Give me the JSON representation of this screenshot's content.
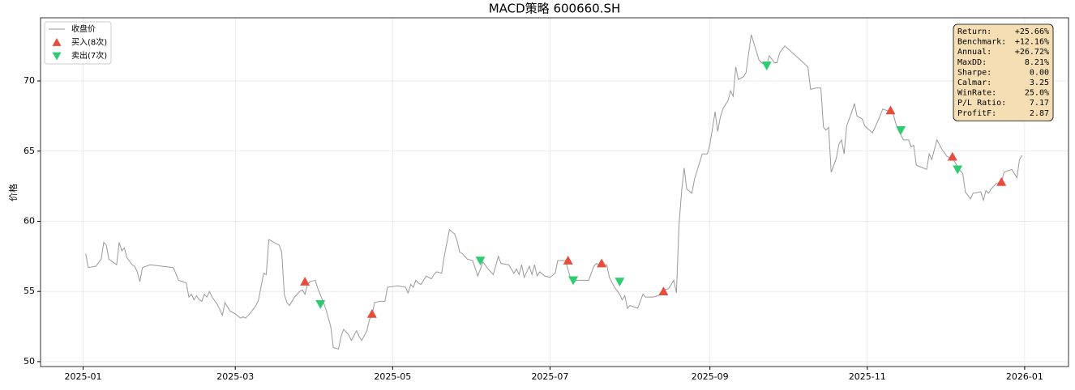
{
  "chart_data": {
    "type": "line",
    "title": "MACD策略  600660.SH",
    "y_label": "价格",
    "xlim": [
      -16.5,
      382
    ],
    "xticks": [
      {
        "value": 0,
        "label": "2025-01"
      },
      {
        "value": 59,
        "label": "2025-03"
      },
      {
        "value": 120,
        "label": "2025-05"
      },
      {
        "value": 181,
        "label": "2025-07"
      },
      {
        "value": 243,
        "label": "2025-09"
      },
      {
        "value": 304,
        "label": "2025-11"
      },
      {
        "value": 365,
        "label": "2026-01"
      }
    ],
    "ylim": [
      49.65,
      74.5
    ],
    "yticks": [
      50,
      55,
      60,
      65,
      70
    ],
    "grid": true,
    "legend": "upper left",
    "series": [
      {
        "name": "收盘价",
        "color": "#999999",
        "marker": "none",
        "x": [
          1,
          2,
          5,
          7,
          8,
          9,
          10,
          13,
          14,
          15,
          16,
          17,
          19,
          20,
          21,
          22,
          23,
          26,
          35,
          37,
          40,
          41,
          42,
          43,
          44,
          45,
          46,
          47,
          48,
          49,
          50,
          52,
          54,
          55,
          57,
          59,
          61,
          62,
          63,
          65,
          67,
          68,
          70,
          71,
          72,
          74,
          76,
          77,
          78,
          79,
          80,
          82,
          84,
          85,
          86,
          87,
          88,
          90,
          91,
          93,
          94,
          96,
          97,
          99,
          100,
          101,
          103,
          104,
          106,
          107,
          108,
          110,
          111,
          112,
          113,
          115,
          117,
          118,
          122,
          125,
          126,
          127,
          128,
          129,
          130,
          131,
          133,
          135,
          136,
          137,
          139,
          140,
          142,
          144,
          145,
          146,
          147,
          149,
          151,
          153,
          155,
          157,
          159,
          161,
          162,
          165,
          167,
          168,
          169,
          170,
          171,
          173,
          174,
          175,
          176,
          177,
          179,
          181,
          183,
          184,
          187,
          189,
          191,
          196,
          198,
          199,
          201,
          203,
          204,
          206,
          208,
          209,
          210,
          211,
          212,
          215,
          217,
          218,
          221,
          223,
          225,
          227,
          229,
          230,
          231,
          232,
          233,
          234,
          236,
          237,
          240,
          242,
          243,
          245,
          246,
          247,
          248,
          250,
          251,
          252,
          253,
          254,
          256,
          257,
          259,
          261,
          262,
          263,
          265,
          266,
          268,
          269,
          270,
          272,
          275,
          278,
          281,
          282,
          284,
          286,
          287,
          288,
          289,
          290,
          292,
          293,
          294,
          295,
          296,
          298,
          299,
          300,
          302,
          303,
          306,
          308,
          310,
          313,
          314,
          315,
          316,
          318,
          320,
          321,
          322,
          323,
          327,
          328,
          329,
          331,
          333,
          335,
          337,
          339,
          340,
          341,
          342,
          344,
          345,
          348,
          349,
          350,
          351,
          352,
          354,
          356,
          357,
          360,
          362,
          363,
          364
        ],
        "values": [
          57.7,
          56.7,
          56.8,
          57.3,
          58.5,
          58.3,
          57.3,
          56.9,
          58.5,
          57.9,
          58.1,
          57.4,
          56.9,
          56.8,
          56.4,
          55.7,
          56.7,
          56.9,
          56.7,
          55.8,
          55.6,
          54.6,
          54.8,
          54.4,
          54.7,
          54.4,
          54.3,
          54.8,
          54.6,
          55.0,
          54.6,
          54.1,
          53.3,
          54.2,
          53.6,
          53.4,
          53.1,
          53.2,
          53.1,
          53.5,
          54.0,
          54.4,
          56.3,
          56.2,
          58.7,
          58.5,
          58.3,
          57.8,
          54.8,
          54.2,
          54.0,
          54.6,
          55.0,
          55.1,
          54.8,
          55.5,
          55.7,
          55.8,
          55.2,
          54.3,
          53.8,
          52.5,
          51.0,
          50.9,
          51.8,
          52.3,
          51.9,
          51.5,
          52.2,
          51.8,
          51.5,
          52.2,
          53.0,
          53.3,
          54.2,
          54.3,
          54.3,
          55.3,
          55.4,
          55.3,
          54.9,
          55.5,
          55.3,
          55.8,
          55.6,
          55.5,
          56.1,
          55.9,
          56.2,
          56.4,
          56.3,
          57.5,
          59.4,
          59.1,
          58.6,
          57.8,
          57.7,
          57.3,
          57.2,
          56.1,
          57.1,
          56.6,
          56.2,
          57.5,
          57.0,
          56.9,
          56.3,
          56.6,
          56.2,
          56.9,
          56.0,
          56.8,
          56.2,
          56.9,
          56.1,
          56.4,
          56.1,
          56.0,
          56.3,
          57.2,
          57.2,
          55.9,
          55.8,
          55.8,
          56.8,
          57.0,
          56.8,
          56.9,
          56.0,
          55.3,
          54.8,
          54.4,
          54.7,
          53.8,
          54.0,
          53.8,
          54.8,
          54.6,
          54.6,
          54.7,
          55.1,
          55.2,
          55.8,
          54.9,
          59.7,
          62.1,
          63.8,
          62.3,
          62.0,
          63.0,
          64.8,
          64.8,
          65.5,
          67.8,
          66.4,
          67.4,
          68.0,
          68.6,
          69.3,
          68.9,
          71.0,
          70.1,
          70.3,
          70.6,
          73.3,
          72.1,
          71.5,
          71.3,
          71.1,
          71.8,
          71.3,
          71.3,
          72.0,
          72.5,
          72.0,
          71.5,
          71.0,
          69.4,
          69.5,
          69.5,
          66.7,
          66.5,
          66.7,
          63.5,
          64.5,
          65.5,
          65.8,
          64.8,
          66.8,
          67.8,
          68.4,
          67.5,
          67.3,
          66.8,
          66.3,
          67.1,
          68.0,
          67.8,
          67.7,
          67.0,
          66.5,
          65.8,
          65.8,
          65.3,
          65.4,
          64.0,
          63.7,
          64.8,
          64.4,
          65.8,
          65.1,
          64.6,
          64.5,
          63.9,
          63.6,
          63.4,
          62.1,
          61.6,
          62.0,
          62.1,
          61.5,
          62.2,
          62.0,
          62.3,
          62.7,
          62.8,
          63.5,
          63.7,
          63.1,
          64.4,
          64.7
        ]
      },
      {
        "name": "买入(8次)",
        "color": "#e74c3c",
        "marker": "triangle-up",
        "x": [
          86,
          112,
          188,
          201,
          225,
          313,
          337,
          356
        ],
        "values": [
          55.7,
          53.4,
          57.2,
          57.0,
          55.0,
          67.9,
          64.6,
          62.8
        ]
      },
      {
        "name": "卖出(7次)",
        "color": "#2ecc71",
        "marker": "triangle-down",
        "x": [
          92,
          154,
          190,
          208,
          265,
          317,
          339
        ],
        "values": [
          54.1,
          57.2,
          55.8,
          55.7,
          71.1,
          66.5,
          63.7
        ]
      }
    ],
    "stats_box": [
      {
        "label": "Return:",
        "value": "+25.66%"
      },
      {
        "label": "Benchmark:",
        "value": "+12.16%"
      },
      {
        "label": "Annual:",
        "value": "+26.72%"
      },
      {
        "label": "MaxDD:",
        "value": "8.21%"
      },
      {
        "label": "Sharpe:",
        "value": "0.00"
      },
      {
        "label": "Calmar:",
        "value": "3.25"
      },
      {
        "label": "WinRate:",
        "value": "25.0%"
      },
      {
        "label": "P/L Ratio:",
        "value": "7.17"
      },
      {
        "label": "ProfitF:",
        "value": "2.87"
      }
    ]
  }
}
